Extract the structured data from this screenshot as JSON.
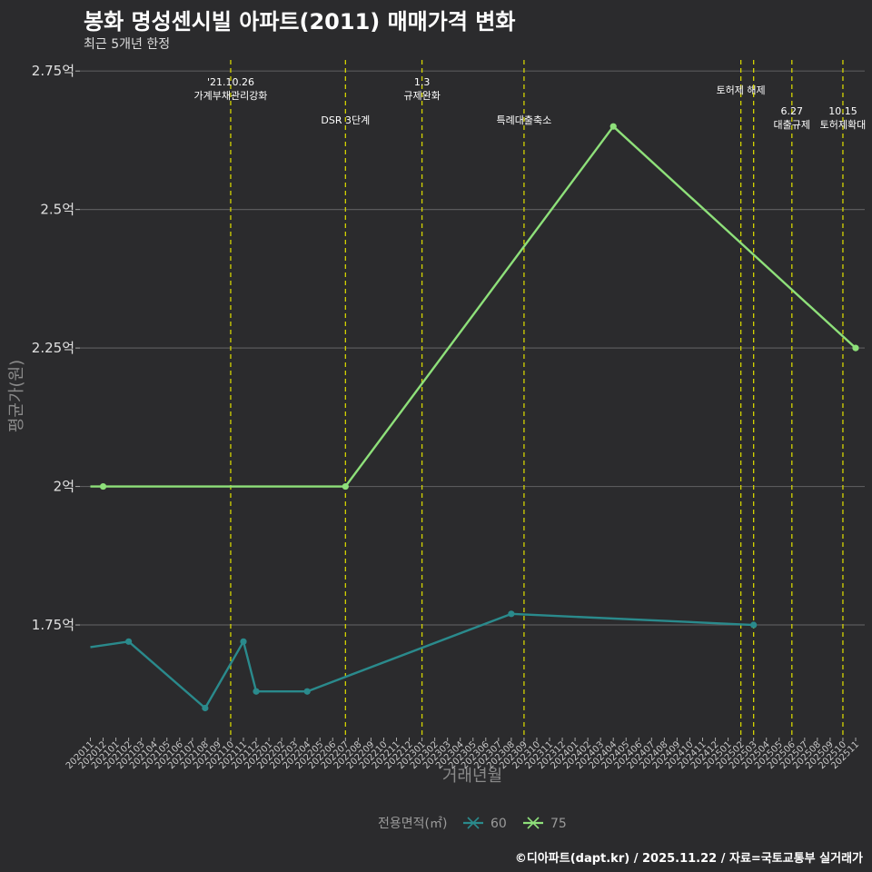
{
  "title": "봉화 명성센시빌 아파트(2011) 매매가격 변화",
  "subtitle": "최근 5개년 한정",
  "caption": "©디아파트(dapt.kr) / 2025.11.22 / 자료=국토교통부 실거래가",
  "colors": {
    "background": "#2b2b2d",
    "grid": "#5a5a5c",
    "event_line": "#d4d400",
    "series_60": "#2a8a8c",
    "series_75": "#8ee07a"
  },
  "chart_data": {
    "type": "line",
    "xlabel": "거래년월",
    "ylabel": "평균가(원)",
    "ylim": [
      1.55,
      2.77
    ],
    "yticks": [
      {
        "value": 1.75,
        "label": "1.75억"
      },
      {
        "value": 2.0,
        "label": "2억"
      },
      {
        "value": 2.25,
        "label": "2.25억"
      },
      {
        "value": 2.5,
        "label": "2.5억"
      },
      {
        "value": 2.75,
        "label": "2.75억"
      }
    ],
    "categories": [
      "202011",
      "202012",
      "202101",
      "202102",
      "202103",
      "202104",
      "202105",
      "202106",
      "202107",
      "202108",
      "202109",
      "202110",
      "202111",
      "202112",
      "202201",
      "202202",
      "202203",
      "202204",
      "202205",
      "202206",
      "202207",
      "202208",
      "202209",
      "202210",
      "202211",
      "202212",
      "202301",
      "202302",
      "202303",
      "202304",
      "202305",
      "202306",
      "202307",
      "202308",
      "202309",
      "202310",
      "202311",
      "202312",
      "202401",
      "202402",
      "202403",
      "202404",
      "202405",
      "202406",
      "202407",
      "202408",
      "202409",
      "202410",
      "202411",
      "202412",
      "202501",
      "202502",
      "202503",
      "202504",
      "202505",
      "202506",
      "202507",
      "202508",
      "202509",
      "202510",
      "202511"
    ],
    "legend_title": "전용면적(㎡)",
    "series": [
      {
        "name": "60",
        "points": [
          {
            "x": "202011",
            "y": 1.71,
            "marker": false
          },
          {
            "x": "202102",
            "y": 1.72,
            "marker": true
          },
          {
            "x": "202108",
            "y": 1.6,
            "marker": true
          },
          {
            "x": "202111",
            "y": 1.72,
            "marker": true
          },
          {
            "x": "202112",
            "y": 1.63,
            "marker": true
          },
          {
            "x": "202204",
            "y": 1.63,
            "marker": true
          },
          {
            "x": "202308",
            "y": 1.77,
            "marker": true
          },
          {
            "x": "202503",
            "y": 1.75,
            "marker": true
          }
        ]
      },
      {
        "name": "75",
        "points": [
          {
            "x": "202011",
            "y": 2.0,
            "marker": false
          },
          {
            "x": "202012",
            "y": 2.0,
            "marker": true
          },
          {
            "x": "202207",
            "y": 2.0,
            "marker": true
          },
          {
            "x": "202404",
            "y": 2.65,
            "marker": true
          },
          {
            "x": "202511",
            "y": 2.25,
            "marker": true
          }
        ]
      }
    ],
    "events": [
      {
        "x": "202110",
        "lines": [
          "'21.10.26",
          "가계부채관리강화"
        ],
        "level": 0
      },
      {
        "x": "202207",
        "lines": [
          "DSR 3단계"
        ],
        "level": 2
      },
      {
        "x": "202301",
        "lines": [
          "1.3",
          "규제완화"
        ],
        "level": 0
      },
      {
        "x": "202309",
        "lines": [
          "특례대출축소"
        ],
        "level": 2
      },
      {
        "x": "202502",
        "lines": [
          "토허제 해제"
        ],
        "level": 1
      },
      {
        "x": "202503",
        "lines": [],
        "level": 1
      },
      {
        "x": "202506",
        "lines": [
          "6.27",
          "대출규제"
        ],
        "level": 3
      },
      {
        "x": "202510",
        "lines": [
          "10.15",
          "토허제확대"
        ],
        "level": 3
      }
    ]
  }
}
